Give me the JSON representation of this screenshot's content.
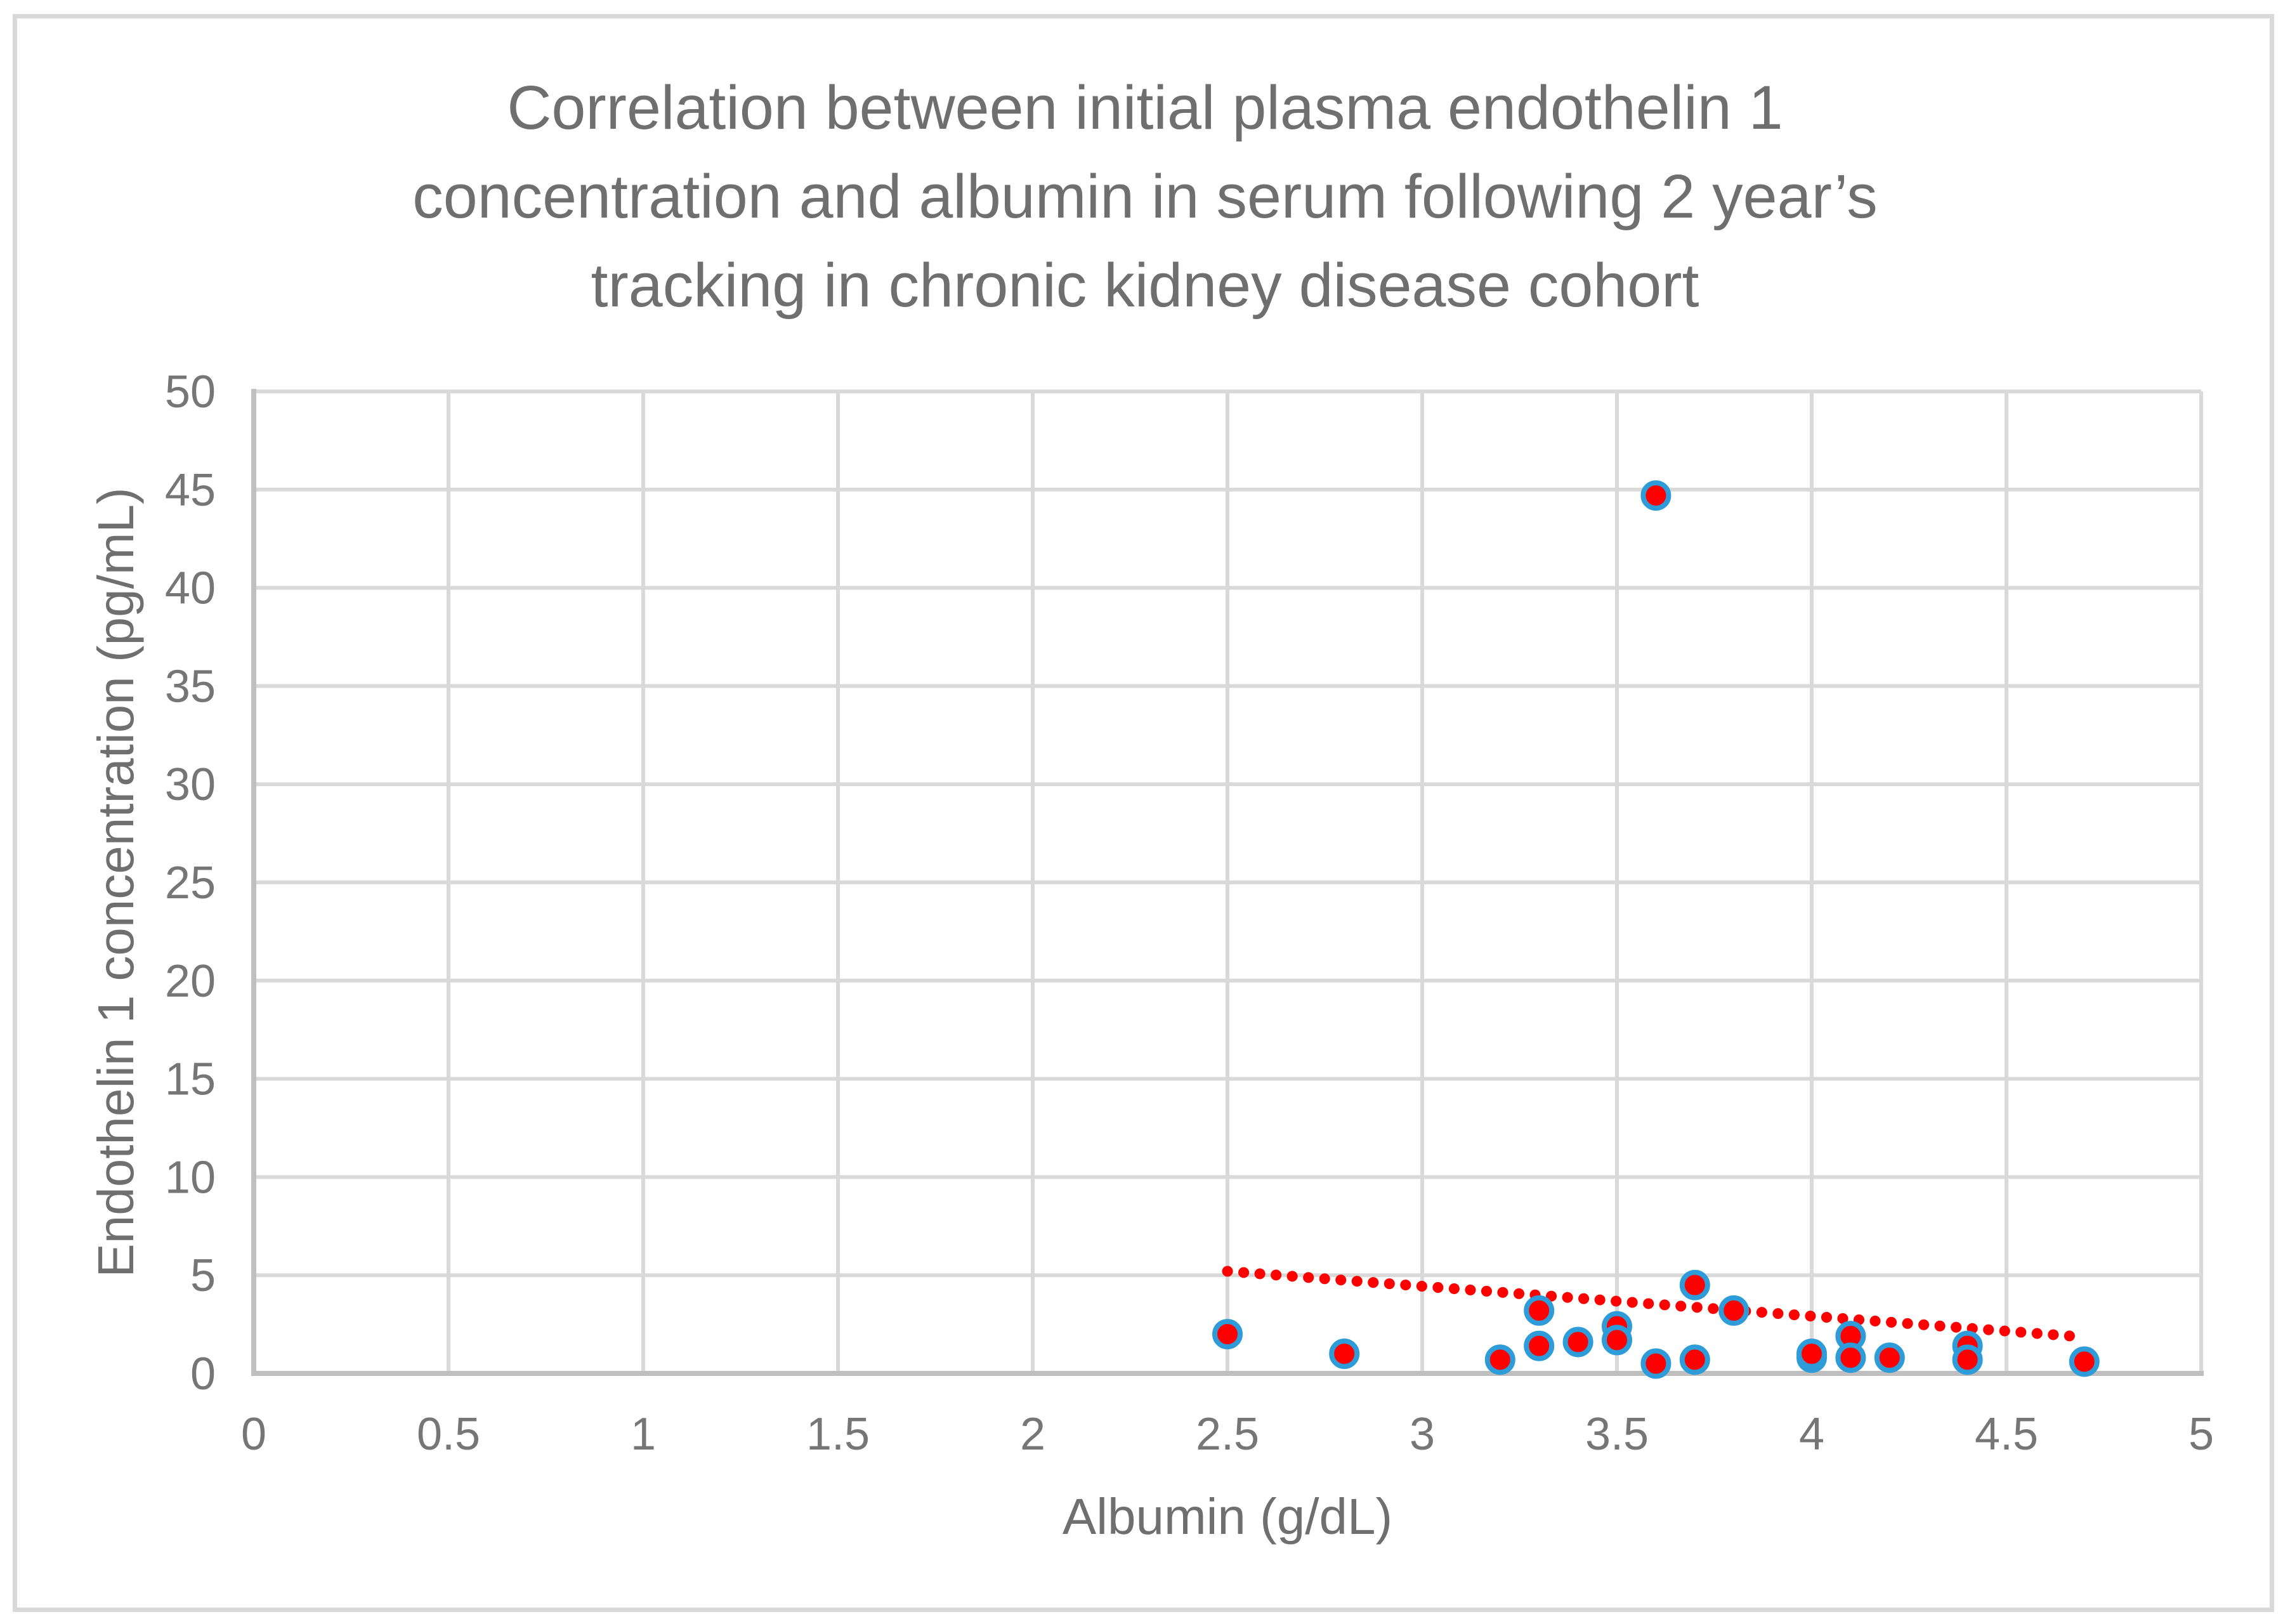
{
  "chart_data": {
    "type": "scatter",
    "title": "Correlation between initial plasma endothelin 1 concentration and albumin in serum following 2 year’s tracking in chronic kidney disease cohort",
    "title_lines": [
      "Correlation between initial plasma endothelin 1",
      "concentration and albumin in serum following 2 year’s",
      "tracking in chronic kidney disease cohort"
    ],
    "xlabel": "Albumin (g/dL)",
    "ylabel": "Endothelin 1 concentration (pg/mL)",
    "xlim": [
      0,
      5
    ],
    "ylim": [
      0,
      50
    ],
    "x_tick_values": [
      0,
      0.5,
      1,
      1.5,
      2,
      2.5,
      3,
      3.5,
      4,
      4.5,
      5
    ],
    "x_tick_labels": [
      "0",
      "0.5",
      "1",
      "1.5",
      "2",
      "2.5",
      "3",
      "3.5",
      "4",
      "4.5",
      "5"
    ],
    "y_tick_values": [
      0,
      5,
      10,
      15,
      20,
      25,
      30,
      35,
      40,
      45,
      50
    ],
    "y_tick_labels": [
      "0",
      "5",
      "10",
      "15",
      "20",
      "25",
      "30",
      "35",
      "40",
      "45",
      "50"
    ],
    "grid": true,
    "legend": "none",
    "points": [
      [
        2.5,
        2.0
      ],
      [
        2.8,
        1.0
      ],
      [
        3.2,
        0.7
      ],
      [
        3.3,
        3.2
      ],
      [
        3.3,
        1.4
      ],
      [
        3.4,
        1.6
      ],
      [
        3.5,
        2.4
      ],
      [
        3.5,
        1.7
      ],
      [
        3.6,
        44.7
      ],
      [
        3.6,
        0.5
      ],
      [
        3.7,
        4.5
      ],
      [
        3.7,
        0.7
      ],
      [
        3.8,
        3.2
      ],
      [
        4.0,
        0.8
      ],
      [
        4.0,
        1.0
      ],
      [
        4.1,
        1.9
      ],
      [
        4.1,
        0.8
      ],
      [
        4.2,
        0.8
      ],
      [
        4.4,
        1.4
      ],
      [
        4.4,
        0.7
      ],
      [
        4.7,
        0.6
      ]
    ],
    "trendline": {
      "style": "dotted",
      "x_start": 2.5,
      "y_start": 5.2,
      "x_end": 4.7,
      "y_end": 1.85
    },
    "colors": {
      "marker_fill": "#fe0000",
      "marker_ring": "#2d9cd9",
      "trendline": "#fe0000",
      "gridline": "#d9d9d9",
      "axis_line": "#bfbfbf",
      "tick_text": "#767676",
      "title_text": "#6f6f6f",
      "border": "#d9d9d9",
      "background": "#ffffff"
    }
  }
}
